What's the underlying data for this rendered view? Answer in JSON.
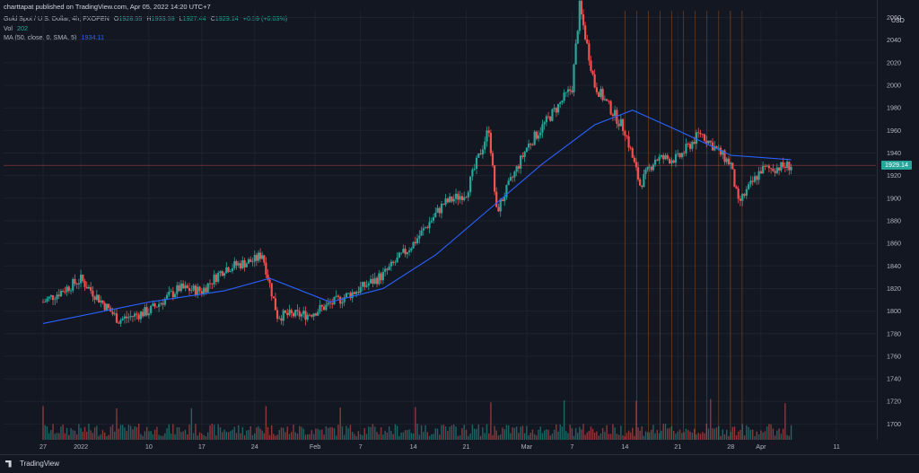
{
  "header": {
    "published": "charttapat published on TradingView.com, Apr 05, 2022 14:20 UTC+7"
  },
  "legend": {
    "symbol": "Gold Spot / U.S. Dollar, 4h, FXOPEN",
    "o_label": "O",
    "o": "1928.55",
    "h_label": "H",
    "h": "1933.59",
    "l_label": "L",
    "l": "1927.44",
    "c_label": "C",
    "c": "1929.14",
    "change": "+0.59 (+0.03%)",
    "vol_label": "Vol",
    "vol": "202",
    "ma_label": "MA (50, close, 0, SMA, 5)",
    "ma": "1934.11"
  },
  "price_axis": {
    "currency": "USD",
    "last_price": "1929.14",
    "ticks": [
      "2060",
      "2040",
      "2020",
      "2000",
      "1980",
      "1960",
      "1940",
      "1920",
      "1900",
      "1880",
      "1860",
      "1840",
      "1820",
      "1800",
      "1780",
      "1760",
      "1740",
      "1720",
      "1700"
    ]
  },
  "time_axis": {
    "ticks": [
      "27",
      "2022",
      "10",
      "17",
      "24",
      "Feb",
      "7",
      "14",
      "21",
      "Mar",
      "7",
      "14",
      "21",
      "28",
      "Apr",
      "11"
    ]
  },
  "branding": {
    "logo": "TradingView"
  },
  "colors": {
    "up": "#26a69a",
    "down": "#ef5350",
    "ma": "#2962ff",
    "background": "#131722",
    "grid": "#1e222d"
  },
  "chart_data": {
    "type": "candlestick",
    "title": "Gold Spot / U.S. Dollar, 4h, FXOPEN",
    "ylabel": "USD",
    "ylim": [
      1686,
      2066
    ],
    "x_ticks": [
      "27",
      "2022",
      "10",
      "17",
      "24",
      "Feb",
      "7",
      "14",
      "21",
      "Mar",
      "7",
      "14",
      "21",
      "28",
      "Apr",
      "11"
    ],
    "series": [
      {
        "name": "Gold Spot / U.S. Dollar",
        "type": "candles",
        "close_approx": [
          {
            "x": "Dec 27",
            "y": 1808
          },
          {
            "x": "2022",
            "y": 1828
          },
          {
            "x": "Jan 6",
            "y": 1792
          },
          {
            "x": "Jan 10",
            "y": 1800
          },
          {
            "x": "Jan 14",
            "y": 1820
          },
          {
            "x": "Jan 17",
            "y": 1818
          },
          {
            "x": "Jan 20",
            "y": 1838
          },
          {
            "x": "Jan 24",
            "y": 1845
          },
          {
            "x": "Jan 25",
            "y": 1851
          },
          {
            "x": "Jan 27",
            "y": 1796
          },
          {
            "x": "Jan 31",
            "y": 1797
          },
          {
            "x": "Feb 3",
            "y": 1806
          },
          {
            "x": "Feb 7",
            "y": 1820
          },
          {
            "x": "Feb 10",
            "y": 1832
          },
          {
            "x": "Feb 14",
            "y": 1860
          },
          {
            "x": "Feb 18",
            "y": 1895
          },
          {
            "x": "Feb 21",
            "y": 1905
          },
          {
            "x": "Feb 24",
            "y": 1962
          },
          {
            "x": "Feb 25",
            "y": 1888
          },
          {
            "x": "Mar 1",
            "y": 1945
          },
          {
            "x": "Mar 7",
            "y": 1998
          },
          {
            "x": "Mar 8",
            "y": 2070
          },
          {
            "x": "Mar 10",
            "y": 2000
          },
          {
            "x": "Mar 14",
            "y": 1960
          },
          {
            "x": "Mar 16",
            "y": 1912
          },
          {
            "x": "Mar 18",
            "y": 1935
          },
          {
            "x": "Mar 21",
            "y": 1935
          },
          {
            "x": "Mar 24",
            "y": 1958
          },
          {
            "x": "Mar 28",
            "y": 1930
          },
          {
            "x": "Mar 29",
            "y": 1895
          },
          {
            "x": "Apr 1",
            "y": 1925
          },
          {
            "x": "Apr 5",
            "y": 1929.14
          }
        ]
      },
      {
        "name": "MA (50, close, 0, SMA, 5)",
        "type": "line",
        "values_approx": [
          {
            "x": "Dec 27",
            "y": 1789
          },
          {
            "x": "Jan 10",
            "y": 1808
          },
          {
            "x": "Jan 20",
            "y": 1818
          },
          {
            "x": "Jan 26",
            "y": 1829
          },
          {
            "x": "Feb 3",
            "y": 1808
          },
          {
            "x": "Feb 10",
            "y": 1820
          },
          {
            "x": "Feb 17",
            "y": 1850
          },
          {
            "x": "Feb 24",
            "y": 1890
          },
          {
            "x": "Mar 3",
            "y": 1930
          },
          {
            "x": "Mar 10",
            "y": 1965
          },
          {
            "x": "Mar 15",
            "y": 1978
          },
          {
            "x": "Mar 21",
            "y": 1960
          },
          {
            "x": "Mar 28",
            "y": 1938
          },
          {
            "x": "Apr 5",
            "y": 1934.11
          }
        ]
      },
      {
        "name": "Vol",
        "type": "volume",
        "last": 202
      }
    ],
    "grid": true,
    "legend_position": "top-left"
  }
}
